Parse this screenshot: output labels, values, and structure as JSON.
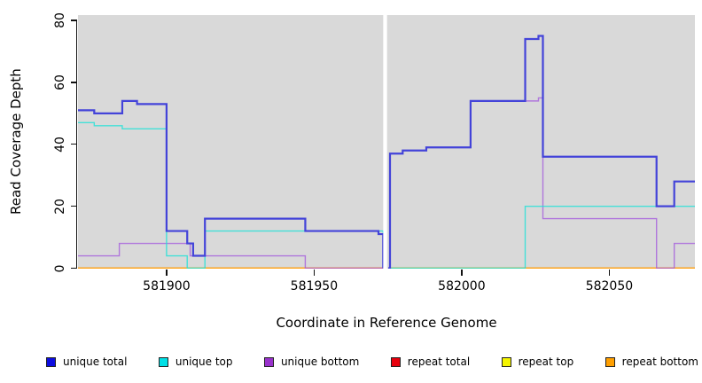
{
  "chart_data": {
    "type": "line",
    "line_style": "step",
    "title": "",
    "xlabel": "Coordinate in Reference Genome",
    "ylabel": "Read Coverage Depth",
    "xlim": [
      581870,
      582079
    ],
    "ylim": [
      0,
      81.7
    ],
    "x_tick_values": [
      581900,
      581950,
      582000,
      582050
    ],
    "x_tick_labels": [
      "581900",
      "581950",
      "582000",
      "582050"
    ],
    "y_tick_values": [
      0,
      20,
      40,
      60,
      80
    ],
    "y_tick_labels": [
      "0",
      "20",
      "40",
      "60",
      "80"
    ],
    "grid": "off",
    "panel_bg": "#d9d9d9",
    "gap_band": {
      "from": 581973.4,
      "to": 581974.7,
      "color": "#ffffff"
    },
    "legend_position": "bottom",
    "series": [
      {
        "name": "repeat total",
        "line_color": "#dd2222",
        "line_width": 1.2,
        "segments": [
          [
            [
              581870,
              0
            ],
            [
              581973.4,
              0
            ]
          ],
          [
            [
              581975.1,
              0
            ],
            [
              582079,
              0
            ]
          ]
        ]
      },
      {
        "name": "repeat top",
        "line_color": "#f0e800",
        "line_width": 1.2,
        "segments": [
          [
            [
              581870,
              0
            ],
            [
              581973.4,
              0
            ]
          ],
          [
            [
              581975.1,
              0
            ],
            [
              582079,
              0
            ]
          ]
        ]
      },
      {
        "name": "repeat bottom",
        "line_color": "#ffa217",
        "line_width": 1.8,
        "segments": [
          [
            [
              581870,
              0
            ],
            [
              581973.4,
              0
            ]
          ],
          [
            [
              581975.1,
              0
            ],
            [
              582079,
              0
            ]
          ]
        ]
      },
      {
        "name": "unique bottom",
        "line_color": "rgba(160,80,220,0.72)",
        "line_width": 1.4,
        "segments": [
          [
            [
              581870,
              4
            ],
            [
              581884,
              8
            ],
            [
              581908,
              4
            ],
            [
              581947,
              0
            ],
            [
              581973.4,
              0
            ]
          ],
          [
            [
              581975.1,
              0
            ],
            [
              581975.7,
              37
            ],
            [
              581980,
              38
            ],
            [
              581988,
              39
            ],
            [
              582003,
              54
            ],
            [
              582026,
              55
            ],
            [
              582027.5,
              16
            ],
            [
              582066,
              0
            ],
            [
              582072,
              8
            ],
            [
              582079,
              8
            ]
          ]
        ]
      },
      {
        "name": "unique top",
        "line_color": "rgba(30,225,215,0.8)",
        "line_width": 1.4,
        "segments": [
          [
            [
              581870,
              47
            ],
            [
              581875.5,
              46
            ],
            [
              581885,
              45
            ],
            [
              581900,
              4
            ],
            [
              581907,
              0
            ],
            [
              581913,
              12
            ],
            [
              581973.4,
              0
            ]
          ],
          [
            [
              581975.1,
              0
            ],
            [
              582021.5,
              20
            ],
            [
              582079,
              20
            ]
          ]
        ]
      },
      {
        "name": "unique total",
        "line_color": "#4343d9",
        "line_width": 2.2,
        "segments": [
          [
            [
              581870,
              51
            ],
            [
              581875.5,
              50
            ],
            [
              581885,
              54
            ],
            [
              581890,
              53
            ],
            [
              581900,
              12
            ],
            [
              581907,
              8
            ],
            [
              581909,
              4
            ],
            [
              581913,
              16
            ],
            [
              581947,
              12
            ],
            [
              581971.8,
              11
            ],
            [
              581973.4,
              0
            ]
          ],
          [
            [
              581975.1,
              0
            ],
            [
              581975.7,
              37
            ],
            [
              581980,
              38
            ],
            [
              581988,
              39
            ],
            [
              582003,
              54
            ],
            [
              582021.5,
              74
            ],
            [
              582026,
              75
            ],
            [
              582027.5,
              36
            ],
            [
              582066,
              20
            ],
            [
              582072,
              28
            ],
            [
              582079,
              28
            ]
          ]
        ]
      }
    ]
  },
  "legend": {
    "items": [
      {
        "label": "unique total",
        "color": "#0d0de0"
      },
      {
        "label": "unique top",
        "color": "#00e0e6"
      },
      {
        "label": "unique bottom",
        "color": "#9932cc"
      },
      {
        "label": "repeat total",
        "color": "#e8000d"
      },
      {
        "label": "repeat top",
        "color": "#f5f500"
      },
      {
        "label": "repeat bottom",
        "color": "#ff9f00"
      }
    ]
  }
}
